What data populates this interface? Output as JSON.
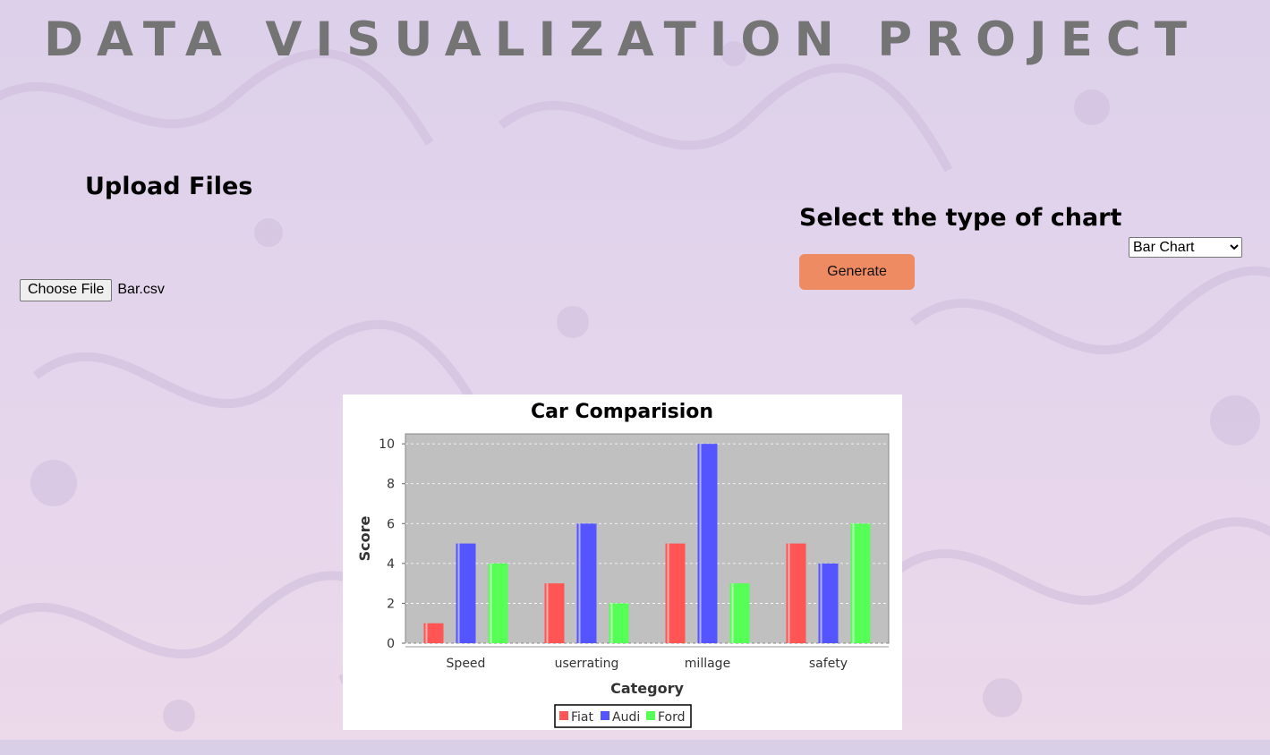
{
  "page": {
    "title": "DATA VISUALIZATION PROJECT"
  },
  "upload": {
    "heading": "Upload Files",
    "button_label": "Choose File",
    "file_name": "Bar.csv"
  },
  "chart_controls": {
    "heading": "Select the type of chart",
    "options": [
      "Bar Chart"
    ],
    "selected": "Bar Chart",
    "generate_label": "Generate"
  },
  "colors": {
    "accent_button": "#ef8b63",
    "plot_background": "#c0c0c0",
    "Fiat": "#ff5555",
    "Audi": "#5555ff",
    "Ford": "#55ff55"
  },
  "chart_data": {
    "type": "bar",
    "title": "Car Comparision",
    "xlabel": "Category",
    "ylabel": "Score",
    "categories": [
      "Speed",
      "userrating",
      "millage",
      "safety"
    ],
    "series": [
      {
        "name": "Fiat",
        "values": [
          1,
          3,
          5,
          5
        ]
      },
      {
        "name": "Audi",
        "values": [
          5,
          6,
          10,
          4
        ]
      },
      {
        "name": "Ford",
        "values": [
          4,
          2,
          3,
          6
        ]
      }
    ],
    "ylim": [
      0,
      10.5
    ],
    "yticks": [
      0,
      2,
      4,
      6,
      8,
      10
    ],
    "grid": true,
    "legend": "bottom-center"
  }
}
